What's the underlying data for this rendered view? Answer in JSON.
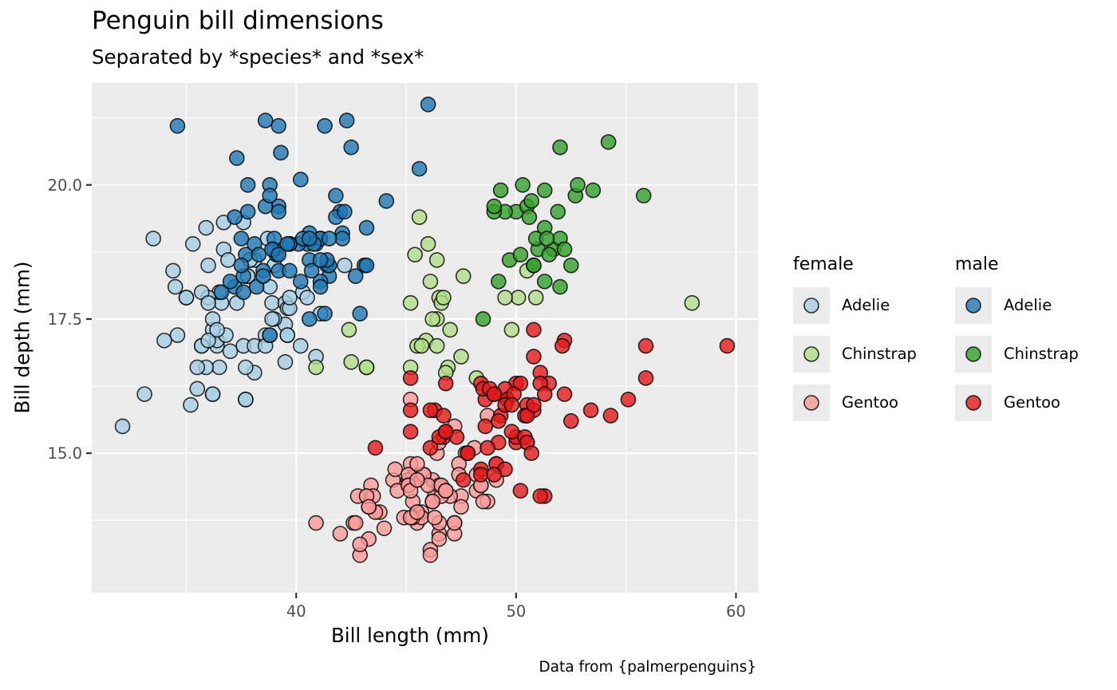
{
  "chart_data": {
    "type": "scatter",
    "title": "Penguin bill dimensions",
    "subtitle": "Separated by *species* and *sex*",
    "caption": "Data from {palmerpenguins}",
    "xlabel": "Bill length (mm)",
    "ylabel": "Bill depth (mm)",
    "xlim": [
      30.7,
      61.0
    ],
    "ylim": [
      12.4,
      21.9
    ],
    "xticks": [
      40,
      50,
      60
    ],
    "xtick_labels": [
      "40",
      "50",
      "60"
    ],
    "yticks": [
      15.0,
      17.5,
      20.0
    ],
    "ytick_labels": [
      "15.0",
      "17.5",
      "20.0"
    ],
    "grid": true,
    "legend_position": "right",
    "legend": {
      "groups": [
        {
          "title": "female",
          "entries": [
            {
              "label": "Adelie",
              "color": "#A6CEE3"
            },
            {
              "label": "Chinstrap",
              "color": "#B2DF8A"
            },
            {
              "label": "Gentoo",
              "color": "#FB9A99"
            }
          ]
        },
        {
          "title": "male",
          "entries": [
            {
              "label": "Adelie",
              "color": "#1F78B4"
            },
            {
              "label": "Chinstrap",
              "color": "#33A02C"
            },
            {
              "label": "Gentoo",
              "color": "#E31A1C"
            }
          ]
        }
      ]
    },
    "series": [
      {
        "name": "female Adelie",
        "sex": "female",
        "species": "Adelie",
        "color": "#A6CEE3",
        "x": [
          39.5,
          40.3,
          36.7,
          38.9,
          41.1,
          36.6,
          38.7,
          34.4,
          37.8,
          35.9,
          35.3,
          40.5,
          37.9,
          39.5,
          39.5,
          36.4,
          42.2,
          37.6,
          36.5,
          36.0,
          37.0,
          36.0,
          39.6,
          35.0,
          34.5,
          39.0,
          36.5,
          35.7,
          37.6,
          36.4,
          35.5,
          35.9,
          33.5,
          39.6,
          35.5,
          40.9,
          36.2,
          34.6,
          36.7,
          37.3,
          36.9,
          38.9,
          35.7,
          34.0,
          36.2,
          38.1,
          33.1,
          35.0,
          37.7,
          37.9,
          38.6,
          38.1,
          38.1,
          39.7,
          39.6,
          38.6,
          35.7,
          36.2,
          38.8,
          38.8,
          35.2,
          37.7,
          36.8,
          36.2,
          37.7,
          39.7,
          37.8,
          36.0,
          40.2,
          36.4,
          39.0,
          36.0,
          32.1
        ],
        "y": [
          17.4,
          18.0,
          19.3,
          17.8,
          17.6,
          17.8,
          19.0,
          18.4,
          18.3,
          19.2,
          18.9,
          17.9,
          18.6,
          16.7,
          17.8,
          17.0,
          18.5,
          19.3,
          18.0,
          18.5,
          16.9,
          17.9,
          17.7,
          17.9,
          18.1,
          17.5,
          16.6,
          17.0,
          17.0,
          17.1,
          16.2,
          16.6,
          19.0,
          17.2,
          16.6,
          16.8,
          16.1,
          17.2,
          18.8,
          17.8,
          18.6,
          17.5,
          18.0,
          17.1,
          17.3,
          18.6,
          16.1,
          17.9,
          16.0,
          18.6,
          17.2,
          17.0,
          16.5,
          17.7,
          17.2,
          17.0,
          17.0,
          16.1,
          17.2,
          18.1,
          15.9,
          16.6,
          17.2,
          17.5,
          16.0,
          17.9,
          18.3,
          17.1,
          17.0,
          17.3,
          18.5,
          17.8,
          15.5
        ]
      },
      {
        "name": "male Adelie",
        "sex": "male",
        "species": "Adelie",
        "color": "#1F78B4",
        "x": [
          39.1,
          39.3,
          39.2,
          38.6,
          34.6,
          42.5,
          46.0,
          37.7,
          38.2,
          38.8,
          40.6,
          40.5,
          37.2,
          40.9,
          39.2,
          38.8,
          39.2,
          38.6,
          37.8,
          43.2,
          41.1,
          38.1,
          45.6,
          42.3,
          40.1,
          42.0,
          41.4,
          41.5,
          39.0,
          44.1,
          43.1,
          41.1,
          41.8,
          39.7,
          42.7,
          41.1,
          40.6,
          40.7,
          39.0,
          40.6,
          42.1,
          41.3,
          37.8,
          40.2,
          41.3,
          41.1,
          39.7,
          42.2,
          41.8,
          41.5,
          41.4,
          40.8,
          36.6,
          38.5,
          37.6,
          40.3,
          39.2,
          37.5,
          42.1,
          38.3,
          38.9,
          41.1,
          37.5,
          37.0,
          37.3,
          41.5,
          39.6,
          43.2,
          38.8,
          40.6,
          39.7,
          38.5,
          42.9,
          37.2,
          37.6,
          39.2,
          40.2
        ],
        "y": [
          18.7,
          20.6,
          19.6,
          21.2,
          21.1,
          20.7,
          21.5,
          18.7,
          18.1,
          17.2,
          18.6,
          18.9,
          18.1,
          18.9,
          21.1,
          20.0,
          19.5,
          19.6,
          20.0,
          19.2,
          19.0,
          18.9,
          20.3,
          21.2,
          18.9,
          19.5,
          18.5,
          18.3,
          18.8,
          19.7,
          18.5,
          18.2,
          19.4,
          18.9,
          18.3,
          18.1,
          19.1,
          18.4,
          19.0,
          17.5,
          19.1,
          17.6,
          19.5,
          20.1,
          21.1,
          19.0,
          18.9,
          19.5,
          19.8,
          18.5,
          18.6,
          18.9,
          18.0,
          18.4,
          18.3,
          19.0,
          18.4,
          19.0,
          19.0,
          18.7,
          18.8,
          18.6,
          18.5,
          18.2,
          20.5,
          19.0,
          18.9,
          18.5,
          19.8,
          19.0,
          18.4,
          18.3,
          17.6,
          19.4,
          18.0,
          18.7,
          18.2
        ]
      },
      {
        "name": "female Chinstrap",
        "sex": "female",
        "species": "Chinstrap",
        "color": "#B2DF8A",
        "x": [
          46.5,
          45.4,
          45.2,
          46.1,
          46.0,
          46.6,
          47.0,
          45.9,
          58.0,
          46.4,
          42.4,
          43.2,
          46.7,
          50.5,
          46.4,
          40.9,
          42.5,
          47.5,
          47.6,
          46.9,
          46.2,
          45.5,
          50.9,
          50.1,
          49.8,
          46.8,
          49.5,
          45.6,
          45.7,
          48.2,
          43.2,
          45.2,
          46.4
        ],
        "y": [
          17.9,
          18.7,
          17.8,
          18.2,
          18.9,
          17.8,
          17.3,
          17.1,
          17.8,
          18.6,
          17.3,
          16.6,
          17.9,
          18.4,
          17.5,
          16.6,
          16.7,
          16.8,
          18.3,
          16.6,
          17.5,
          17.0,
          17.9,
          17.9,
          17.3,
          16.5,
          17.9,
          19.4,
          17.0,
          16.4,
          16.6,
          16.6,
          17.0
        ]
      },
      {
        "name": "male Chinstrap",
        "sex": "male",
        "species": "Chinstrap",
        "color": "#33A02C",
        "x": [
          50.0,
          51.3,
          52.7,
          51.3,
          51.3,
          51.7,
          52.0,
          50.5,
          50.3,
          49.2,
          48.5,
          50.6,
          52.0,
          49.5,
          52.8,
          54.2,
          51.0,
          49.7,
          52.0,
          53.5,
          49.0,
          50.9,
          50.8,
          51.5,
          50.2,
          52.2,
          50.7,
          49.3,
          55.8,
          49.0,
          50.8,
          51.9,
          51.4,
          52.5
        ],
        "y": [
          19.5,
          19.2,
          19.8,
          18.2,
          19.9,
          18.8,
          19.0,
          19.6,
          20.0,
          18.2,
          17.5,
          19.4,
          18.1,
          19.5,
          20.0,
          20.8,
          18.8,
          18.6,
          20.7,
          19.9,
          19.5,
          19.0,
          18.5,
          18.7,
          18.7,
          18.8,
          19.7,
          19.9,
          19.8,
          19.6,
          18.5,
          19.5,
          19.0,
          18.5
        ]
      },
      {
        "name": "female Gentoo",
        "sex": "female",
        "species": "Gentoo",
        "color": "#FB9A99",
        "x": [
          46.1,
          48.7,
          46.5,
          45.4,
          43.3,
          40.9,
          45.5,
          45.8,
          42.0,
          46.2,
          45.1,
          46.5,
          42.9,
          48.2,
          42.8,
          45.1,
          47.2,
          46.3,
          42.6,
          44.4,
          44.0,
          45.5,
          43.8,
          43.6,
          45.5,
          44.9,
          47.2,
          46.1,
          43.4,
          47.5,
          42.7,
          45.7,
          43.3,
          47.7,
          43.5,
          45.7,
          47.0,
          44.5,
          45.2,
          48.4,
          45.3,
          49.1,
          42.9,
          46.5,
          45.8,
          48.7,
          45.2,
          46.0,
          47.4,
          43.2,
          46.5,
          45.3,
          48.2,
          45.1,
          45.5,
          47.2,
          47.5,
          50.5,
          46.2,
          47.8,
          48.5,
          46.6,
          46.4,
          45.1,
          44.6,
          45.1,
          46.6,
          46.8,
          48.4,
          46.3,
          48.1,
          49.1,
          45.2,
          43.3,
          45.5,
          46.5,
          46.2,
          47.4,
          47.2,
          46.8,
          45.5,
          45.2
        ],
        "y": [
          13.2,
          14.1,
          13.5,
          14.6,
          13.4,
          13.7,
          13.7,
          14.6,
          13.5,
          14.5,
          14.5,
          13.4,
          13.1,
          14.3,
          14.2,
          14.5,
          13.7,
          14.2,
          13.7,
          14.5,
          13.6,
          13.9,
          13.9,
          13.9,
          14.5,
          13.8,
          13.5,
          13.1,
          14.4,
          14.2,
          13.7,
          13.9,
          14.0,
          15.0,
          14.2,
          13.8,
          14.2,
          14.7,
          14.8,
          14.4,
          13.8,
          14.5,
          13.3,
          14.4,
          14.6,
          15.7,
          13.8,
          14.4,
          14.8,
          14.2,
          13.7,
          14.1,
          14.6,
          14.6,
          13.9,
          15.5,
          14.0,
          15.2,
          14.1,
          15.0,
          14.1,
          14.2,
          15.0,
          14.4,
          14.3,
          14.4,
          14.4,
          14.3,
          14.4,
          13.8,
          15.1,
          14.8,
          14.3,
          14.0,
          14.5,
          15.2,
          14.1,
          14.6,
          13.7,
          14.3,
          14.8,
          16.0
        ]
      },
      {
        "name": "male Gentoo",
        "sex": "male",
        "species": "Gentoo",
        "color": "#E31A1C",
        "x": [
          50.0,
          50.0,
          47.6,
          46.7,
          46.8,
          49.0,
          48.4,
          49.3,
          49.2,
          48.7,
          50.2,
          46.3,
          46.1,
          47.8,
          50.0,
          47.3,
          59.6,
          49.1,
          49.6,
          48.6,
          50.5,
          45.2,
          50.4,
          46.5,
          46.7,
          50.5,
          49.5,
          48.4,
          45.2,
          46.1,
          52.2,
          46.8,
          49.2,
          45.2,
          48.4,
          49.6,
          50.8,
          50.8,
          50.7,
          49.0,
          48.5,
          51.1,
          55.9,
          55.1,
          46.8,
          48.8,
          50.4,
          50.2,
          51.3,
          52.5,
          47.8,
          52.1,
          49.0,
          49.9,
          51.5,
          55.9,
          51.1,
          50.8,
          51.3,
          49.5,
          49.8,
          48.6,
          49.8,
          52.2,
          43.6,
          49.5,
          50.5,
          53.4,
          54.3,
          49.0,
          51.1,
          50.8
        ],
        "y": [
          16.3,
          15.2,
          14.5,
          15.3,
          15.4,
          16.1,
          14.7,
          15.7,
          15.2,
          15.1,
          14.3,
          15.8,
          15.1,
          15.0,
          15.3,
          15.3,
          17.0,
          14.8,
          16.0,
          16.0,
          15.9,
          15.8,
          15.3,
          15.3,
          15.7,
          15.2,
          16.2,
          14.6,
          16.4,
          15.8,
          17.1,
          15.4,
          15.6,
          15.4,
          16.3,
          16.0,
          15.8,
          16.8,
          15.0,
          16.1,
          16.2,
          16.5,
          17.0,
          16.0,
          16.3,
          16.2,
          15.7,
          16.3,
          14.2,
          15.6,
          15.0,
          17.0,
          16.1,
          16.1,
          16.3,
          16.4,
          16.3,
          17.3,
          16.1,
          15.9,
          15.9,
          15.5,
          15.4,
          16.1,
          15.1,
          14.7,
          15.7,
          15.8,
          15.7,
          14.6,
          14.2,
          15.9
        ]
      }
    ]
  }
}
